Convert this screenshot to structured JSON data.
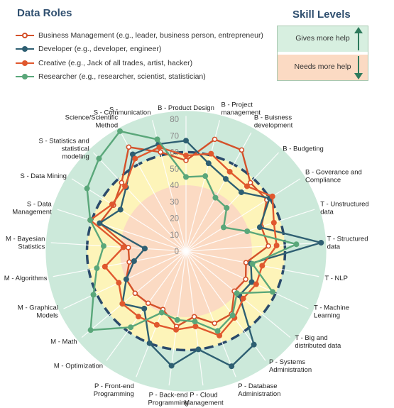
{
  "legend_title": "Data Roles",
  "skill_levels": {
    "title": "Skill Levels",
    "more_help": "Gives more help",
    "less_help": "Needs more help"
  },
  "colors": {
    "background_ring": "#cce9da",
    "inner_ring": "#fdf4b9",
    "center": "#fbdac3",
    "dash": "#2a4a6b",
    "arrow": "#2e7a5c"
  },
  "chart_data": {
    "type": "radar",
    "rlim": [
      0,
      80
    ],
    "rticks": [
      0,
      10,
      20,
      30,
      40,
      50,
      60,
      70,
      80
    ],
    "dashed_reference": 60,
    "background_bands": [
      {
        "from": 0,
        "to": 40,
        "color": "#fbdac3"
      },
      {
        "from": 40,
        "to": 60,
        "color": "#fdf4b9"
      },
      {
        "from": 60,
        "to": 85,
        "color": "#cce9da"
      }
    ],
    "categories": [
      "B - Product Design",
      "B - Project management",
      "B - Buisness development",
      "B - Budgeting",
      "B - Goverance and Compliance",
      "T - Unstructured data",
      "T - Structured data",
      "T - NLP",
      "T - Machine Learning",
      "T - Big and distributed data",
      "P - Systems Administration",
      "P - Database Administration",
      "P - Cloud Management",
      "P - Back-end Programming",
      "P - Front-end Programming",
      "M - Optimization",
      "M - Math",
      "M - Graphical Models",
      "M - Algorithms",
      "M - Bayesian Statistics",
      "S - Data Management",
      "S - Data Mining",
      "S - Statistics and statistical modeling",
      "S - Science/Scientific Method",
      "S - Communication"
    ],
    "series": [
      {
        "name": "Business Management (e.g., leader, business person, entrepreneur)",
        "color": "#d4512a",
        "marker": "open",
        "values": [
          55,
          70,
          70,
          57,
          58,
          48,
          50,
          37,
          40,
          38,
          47,
          47,
          40,
          46,
          38,
          39,
          40,
          40,
          35,
          35,
          55,
          52,
          57,
          72,
          62
        ]
      },
      {
        "name": "Developer (e.g., developer, engineer)",
        "color": "#2e5f72",
        "marker": "filled",
        "values": [
          67,
          55,
          50,
          49,
          60,
          47,
          82,
          40,
          44,
          42,
          70,
          75,
          60,
          70,
          60,
          43,
          50,
          40,
          32,
          25,
          55,
          47,
          53,
          67,
          67
        ]
      },
      {
        "name": "Creative (e.g., Jack of all trades, artist, hacker)",
        "color": "#e0582e",
        "marker": "filled",
        "values": [
          58,
          61,
          55,
          54,
          62,
          56,
          55,
          47,
          47,
          45,
          50,
          55,
          46,
          48,
          48,
          49,
          50,
          45,
          50,
          38,
          61,
          53,
          54,
          64,
          65
        ]
      },
      {
        "name": "Researcher (e.g., researcher, scientist, statistician)",
        "color": "#5aa77a",
        "marker": "filled",
        "values": [
          45,
          47,
          37,
          36,
          27,
          39,
          67,
          41,
          58,
          40,
          48,
          52,
          43,
          42,
          40,
          57,
          75,
          62,
          55,
          50,
          61,
          71,
          77,
          83,
          70
        ]
      }
    ]
  }
}
